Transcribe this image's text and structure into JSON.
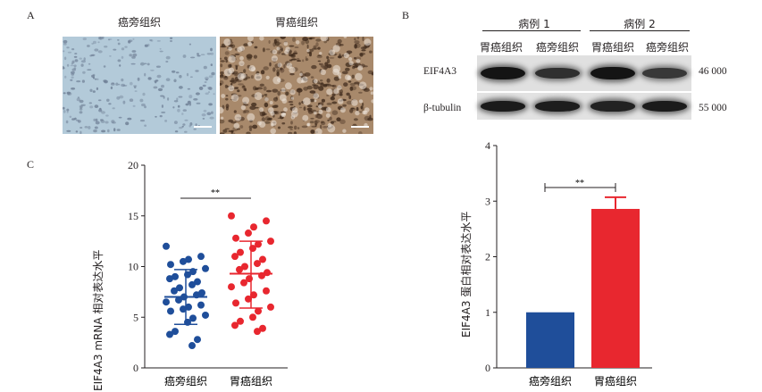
{
  "panelA": {
    "letter": "A",
    "images": [
      {
        "caption": "癌旁组织",
        "stain": "#b3cad9",
        "dot": "#6f7f95"
      },
      {
        "caption": "胃癌组织",
        "stain": "#a8896b",
        "dot": "#3e2a1c"
      }
    ]
  },
  "panelB": {
    "letter": "B",
    "cases": [
      "病例 1",
      "病例 2"
    ],
    "lanes": [
      "胃癌组织",
      "癌旁组织",
      "胃癌组织",
      "癌旁组织"
    ],
    "rows": [
      {
        "label": "EIF4A3",
        "size": "46 000",
        "intensity": [
          1.0,
          0.7,
          1.0,
          0.6
        ]
      },
      {
        "label": "β-tubulin",
        "size": "55 000",
        "intensity": [
          0.92,
          0.9,
          0.85,
          0.92
        ]
      }
    ]
  },
  "panelC": {
    "letter": "C"
  },
  "chart_data": [
    {
      "type": "scatter",
      "ylabel": "EIF4A3 mRNA 相对表达水平",
      "categories": [
        "癌旁组织",
        "胃癌组织"
      ],
      "ylim": [
        0,
        20
      ],
      "yticks": [
        0,
        5,
        10,
        15,
        20
      ],
      "significance": "**",
      "series": [
        {
          "color": "#1f4e9a",
          "mean": 7.0,
          "sd_low": 4.3,
          "sd_high": 9.7,
          "values": [
            12.0,
            11.0,
            10.7,
            10.5,
            10.2,
            9.8,
            9.5,
            9.2,
            9.0,
            8.8,
            8.5,
            8.2,
            7.9,
            7.6,
            7.4,
            7.2,
            7.0,
            6.7,
            6.5,
            6.2,
            6.0,
            5.8,
            5.6,
            5.2,
            4.9,
            4.5,
            3.6,
            3.3,
            2.8,
            2.2
          ]
        },
        {
          "color": "#e8272f",
          "mean": 9.3,
          "sd_low": 5.9,
          "sd_high": 12.5,
          "values": [
            15.0,
            14.5,
            13.9,
            13.3,
            12.8,
            12.5,
            12.2,
            11.8,
            11.4,
            11.0,
            10.7,
            10.3,
            10.0,
            9.7,
            9.4,
            9.1,
            8.8,
            8.4,
            8.0,
            7.6,
            7.2,
            6.8,
            6.4,
            6.0,
            5.6,
            5.0,
            4.6,
            4.2,
            3.9,
            3.6
          ]
        }
      ]
    },
    {
      "type": "bar",
      "ylabel": "EIF4A3 蛋白相对表达水平",
      "categories": [
        "癌旁组织",
        "胃癌组织"
      ],
      "values": [
        1.0,
        2.86
      ],
      "error": [
        0,
        0.21
      ],
      "colors": [
        "#1f4e9a",
        "#e8272f"
      ],
      "ylim": [
        0,
        4
      ],
      "yticks": [
        0,
        1,
        2,
        3,
        4
      ],
      "significance": "**"
    }
  ]
}
